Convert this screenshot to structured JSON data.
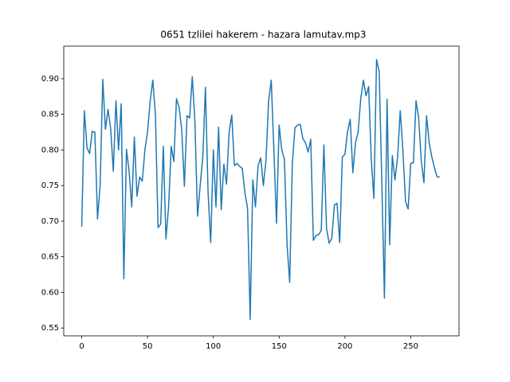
{
  "chart_data": {
    "type": "line",
    "title": "0651 tzlilei hakerem - hazara lamutav.mp3",
    "color": "#1f77b4",
    "x": [
      0,
      2,
      4,
      6,
      8,
      10,
      12,
      14,
      16,
      18,
      20,
      22,
      24,
      26,
      28,
      30,
      32,
      34,
      36,
      38,
      40,
      42,
      44,
      46,
      48,
      50,
      52,
      54,
      56,
      58,
      60,
      62,
      64,
      66,
      68,
      70,
      72,
      74,
      76,
      78,
      80,
      82,
      84,
      86,
      88,
      90,
      92,
      94,
      96,
      98,
      100,
      102,
      104,
      106,
      108,
      110,
      112,
      114,
      116,
      118,
      120,
      122,
      124,
      126,
      128,
      130,
      132,
      134,
      136,
      138,
      140,
      142,
      144,
      146,
      148,
      150,
      152,
      154,
      156,
      158,
      160,
      162,
      164,
      166,
      168,
      170,
      172,
      174,
      176,
      178,
      180,
      182,
      184,
      186,
      188,
      190,
      192,
      194,
      196,
      198,
      200,
      202,
      204,
      206,
      208,
      210,
      212,
      214,
      216,
      218,
      220,
      222,
      224,
      226,
      228,
      230,
      232,
      234,
      236,
      238,
      240,
      242,
      244,
      246,
      248,
      250,
      252,
      254,
      256,
      258,
      260,
      262,
      264,
      266,
      268,
      270,
      272
    ],
    "values": [
      0.692,
      0.855,
      0.803,
      0.795,
      0.826,
      0.825,
      0.703,
      0.75,
      0.899,
      0.829,
      0.857,
      0.83,
      0.77,
      0.869,
      0.8,
      0.865,
      0.619,
      0.801,
      0.77,
      0.72,
      0.818,
      0.735,
      0.762,
      0.756,
      0.8,
      0.825,
      0.868,
      0.898,
      0.85,
      0.691,
      0.696,
      0.805,
      0.675,
      0.72,
      0.805,
      0.784,
      0.872,
      0.86,
      0.828,
      0.749,
      0.848,
      0.845,
      0.903,
      0.84,
      0.707,
      0.75,
      0.79,
      0.888,
      0.74,
      0.67,
      0.8,
      0.72,
      0.832,
      0.716,
      0.78,
      0.752,
      0.825,
      0.849,
      0.778,
      0.781,
      0.777,
      0.774,
      0.74,
      0.718,
      0.562,
      0.758,
      0.72,
      0.778,
      0.789,
      0.75,
      0.785,
      0.869,
      0.898,
      0.8,
      0.697,
      0.835,
      0.8,
      0.787,
      0.668,
      0.614,
      0.78,
      0.831,
      0.835,
      0.836,
      0.816,
      0.81,
      0.797,
      0.815,
      0.673,
      0.68,
      0.681,
      0.687,
      0.807,
      0.69,
      0.669,
      0.676,
      0.723,
      0.725,
      0.67,
      0.79,
      0.794,
      0.826,
      0.843,
      0.768,
      0.81,
      0.825,
      0.872,
      0.898,
      0.876,
      0.889,
      0.787,
      0.732,
      0.927,
      0.91,
      0.755,
      0.592,
      0.871,
      0.667,
      0.792,
      0.758,
      0.79,
      0.855,
      0.8,
      0.728,
      0.717,
      0.781,
      0.782,
      0.869,
      0.845,
      0.784,
      0.754,
      0.848,
      0.81,
      0.79,
      0.775,
      0.762,
      0.762
    ],
    "xlim": [
      -13.65,
      286.65
    ],
    "ylim": [
      0.539,
      0.9457
    ],
    "xticks": [
      0,
      50,
      100,
      150,
      200,
      250
    ],
    "yticks": [
      0.55,
      {
        "value": 0.6,
        "label": "0.60"
      },
      0.65,
      {
        "value": 0.7,
        "label": "0.70"
      },
      0.75,
      {
        "value": 0.8,
        "label": "0.80"
      },
      0.85,
      {
        "value": 0.9,
        "label": "0.90"
      }
    ]
  }
}
